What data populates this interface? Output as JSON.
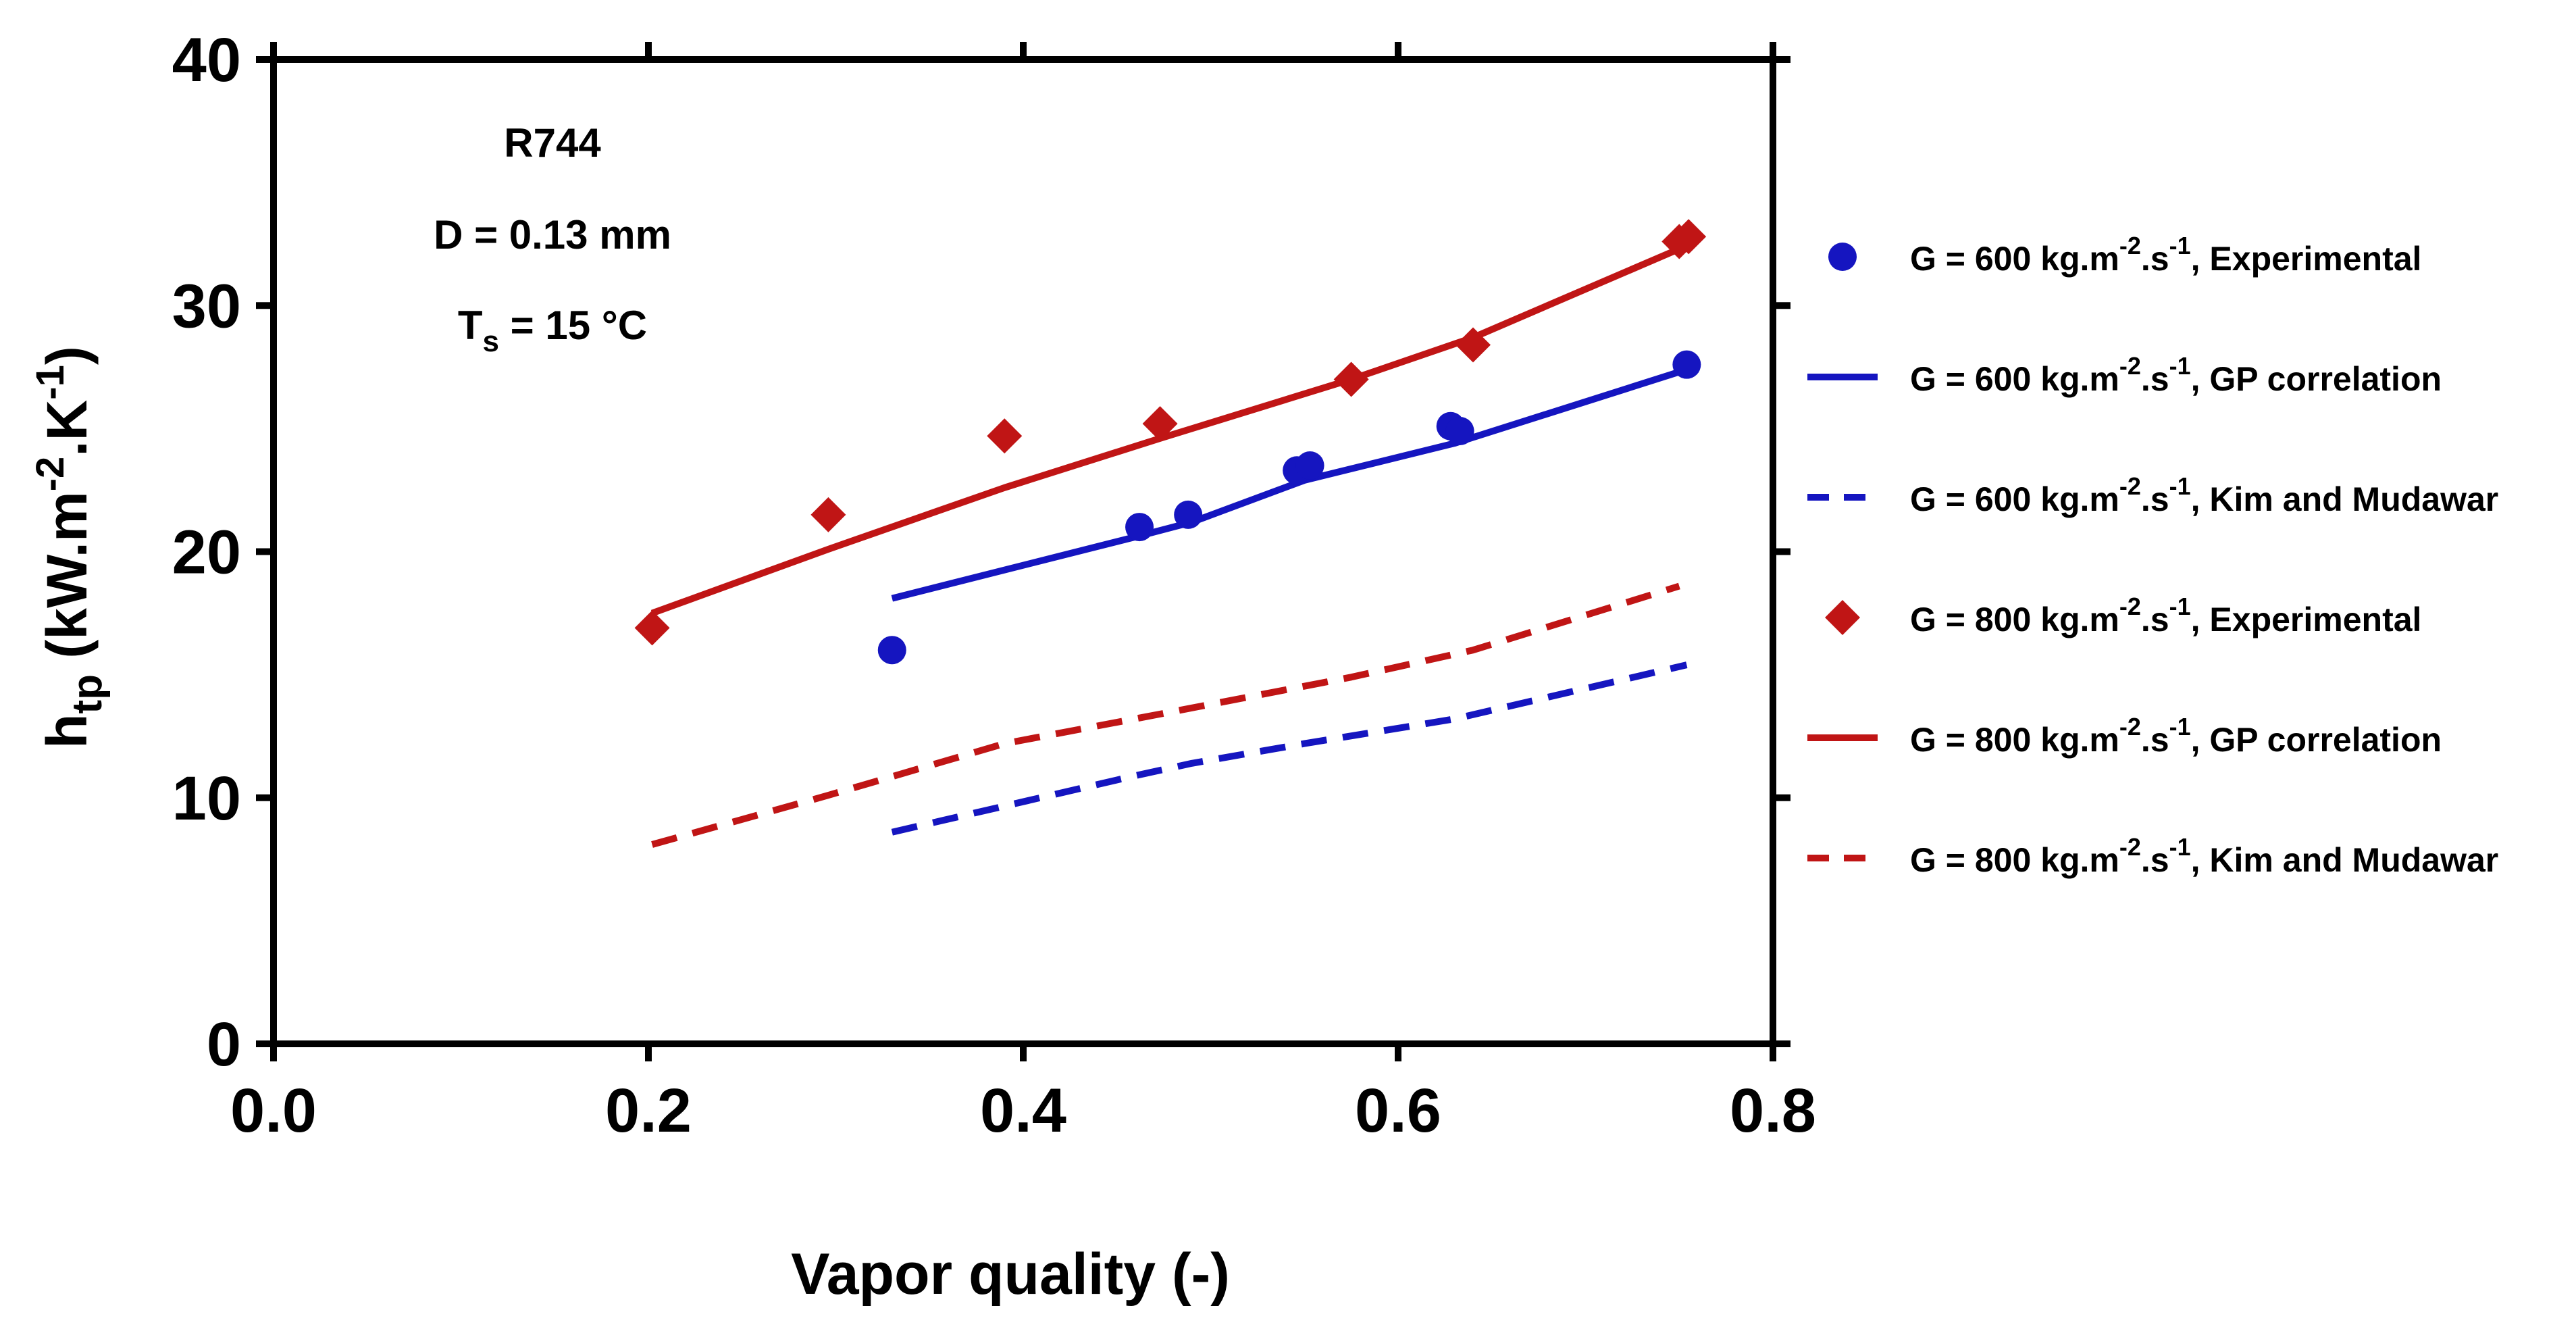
{
  "chart_data": {
    "type": "scatter",
    "title": "",
    "xlabel": "Vapor quality (-)",
    "ylabel": {
      "main": "h",
      "sub": "tp",
      "unit_pre": " (kW.m",
      "sup1": "-2",
      "unit_mid": ".K",
      "sup2": "-1",
      "unit_post": ")"
    },
    "xlim": [
      0.0,
      0.8
    ],
    "ylim": [
      0,
      40
    ],
    "x_ticks": [
      0.0,
      0.2,
      0.4,
      0.6,
      0.8
    ],
    "x_tick_labels": [
      "0.0",
      "0.2",
      "0.4",
      "0.6",
      "0.8"
    ],
    "y_ticks": [
      0,
      10,
      20,
      30,
      40
    ],
    "y_tick_labels": [
      "0",
      "10",
      "20",
      "30",
      "40"
    ],
    "grid": false,
    "legend_position": "right",
    "annotations": {
      "fluid": "R744",
      "diameter": "D = 0.13 mm",
      "temp": {
        "main": "T",
        "sub": "s",
        "rest": " = 15 °C"
      }
    },
    "series": [
      {
        "name": "G = 600 kg.m-2.s-1, Experimental",
        "legend": {
          "pre": "G = 600 kg.m",
          "sup1": "-2",
          "mid": ".s",
          "sup2": "-1",
          "post": ", Experimental"
        },
        "kind": "marker-circle",
        "color": "#1515c0",
        "x": [
          0.33,
          0.462,
          0.488,
          0.546,
          0.553,
          0.628,
          0.633,
          0.754
        ],
        "y": [
          16.0,
          21.0,
          21.5,
          23.3,
          23.5,
          25.1,
          24.9,
          27.6
        ]
      },
      {
        "name": "G = 600 kg.m-2.s-1, GP correlation",
        "legend": {
          "pre": "G = 600 kg.m",
          "sup1": "-2",
          "mid": ".s",
          "sup2": "-1",
          "post": ", GP correlation"
        },
        "kind": "line-solid",
        "color": "#1515c0",
        "x": [
          0.33,
          0.46,
          0.49,
          0.55,
          0.63,
          0.754
        ],
        "y": [
          18.1,
          20.6,
          21.2,
          22.9,
          24.4,
          27.4
        ]
      },
      {
        "name": "G = 600 kg.m-2.s-1, Kim and Mudawar",
        "legend": {
          "pre": "G = 600 kg.m",
          "sup1": "-2",
          "mid": ".s",
          "sup2": "-1",
          "post": ", Kim and Mudawar"
        },
        "kind": "line-dashed",
        "color": "#1515c0",
        "x": [
          0.33,
          0.46,
          0.49,
          0.55,
          0.63,
          0.754
        ],
        "y": [
          8.6,
          10.9,
          11.4,
          12.2,
          13.2,
          15.4
        ]
      },
      {
        "name": "G = 800 kg.m-2.s-1, Experimental",
        "legend": {
          "pre": "G = 800 kg.m",
          "sup1": "-2",
          "mid": ".s",
          "sup2": "-1",
          "post": ", Experimental"
        },
        "kind": "marker-diamond",
        "color": "#c01515",
        "x": [
          0.202,
          0.296,
          0.39,
          0.473,
          0.575,
          0.64,
          0.75,
          0.755
        ],
        "y": [
          16.9,
          21.5,
          24.7,
          25.2,
          27.0,
          28.4,
          32.6,
          32.8
        ]
      },
      {
        "name": "G = 800 kg.m-2.s-1, GP correlation",
        "legend": {
          "pre": "G = 800 kg.m",
          "sup1": "-2",
          "mid": ".s",
          "sup2": "-1",
          "post": ", GP correlation"
        },
        "kind": "line-solid",
        "color": "#c01515",
        "x": [
          0.202,
          0.296,
          0.39,
          0.473,
          0.575,
          0.64,
          0.753
        ],
        "y": [
          17.5,
          20.1,
          22.6,
          24.6,
          27.0,
          28.7,
          32.4
        ]
      },
      {
        "name": "G = 800 kg.m-2.s-1, Kim and Mudawar",
        "legend": {
          "pre": "G = 800 kg.m",
          "sup1": "-2",
          "mid": ".s",
          "sup2": "-1",
          "post": ", Kim and Mudawar"
        },
        "kind": "line-dashed",
        "color": "#c01515",
        "x": [
          0.202,
          0.296,
          0.39,
          0.473,
          0.575,
          0.64,
          0.75
        ],
        "y": [
          8.1,
          10.1,
          12.2,
          13.4,
          14.9,
          16.0,
          18.6
        ]
      }
    ]
  }
}
